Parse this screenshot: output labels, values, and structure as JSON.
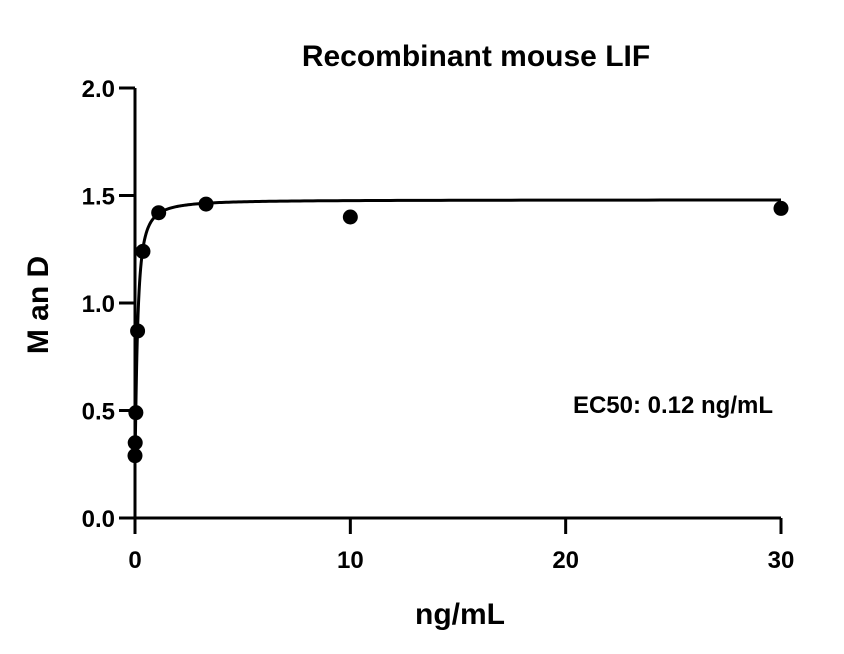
{
  "chart_data": {
    "type": "scatter",
    "title": "Recombinant mouse LIF",
    "xlabel": "ng/mL",
    "ylabel": "M an D",
    "xlim": [
      0,
      30
    ],
    "ylim": [
      0,
      2.0
    ],
    "x_ticks": [
      0,
      10,
      20,
      30
    ],
    "x_tick_labels": [
      "0",
      "10",
      "20",
      "30"
    ],
    "y_ticks": [
      0,
      0.5,
      1.0,
      1.5,
      2.0
    ],
    "y_tick_labels": [
      "0.0",
      "0.5",
      "1.0",
      "1.5",
      "2.0"
    ],
    "series": [
      {
        "points": [
          {
            "x": 0.0,
            "y": 0.29
          },
          {
            "x": 0.01,
            "y": 0.35
          },
          {
            "x": 0.04,
            "y": 0.49
          },
          {
            "x": 0.12,
            "y": 0.87
          },
          {
            "x": 0.37,
            "y": 1.24
          },
          {
            "x": 1.1,
            "y": 1.42
          },
          {
            "x": 3.3,
            "y": 1.46
          },
          {
            "x": 10,
            "y": 1.4
          },
          {
            "x": 30,
            "y": 1.44
          }
        ]
      }
    ],
    "fit_curve": {
      "model": "four-parameter logistic",
      "bottom": 0.28,
      "top": 1.48,
      "ec50": 0.12,
      "hill": 1.3
    },
    "annotation": "EC50: 0.12 ng/mL",
    "grid": false,
    "legend": "none",
    "colors": {
      "points": "#000000",
      "curve": "#000000",
      "axes": "#000000"
    }
  }
}
